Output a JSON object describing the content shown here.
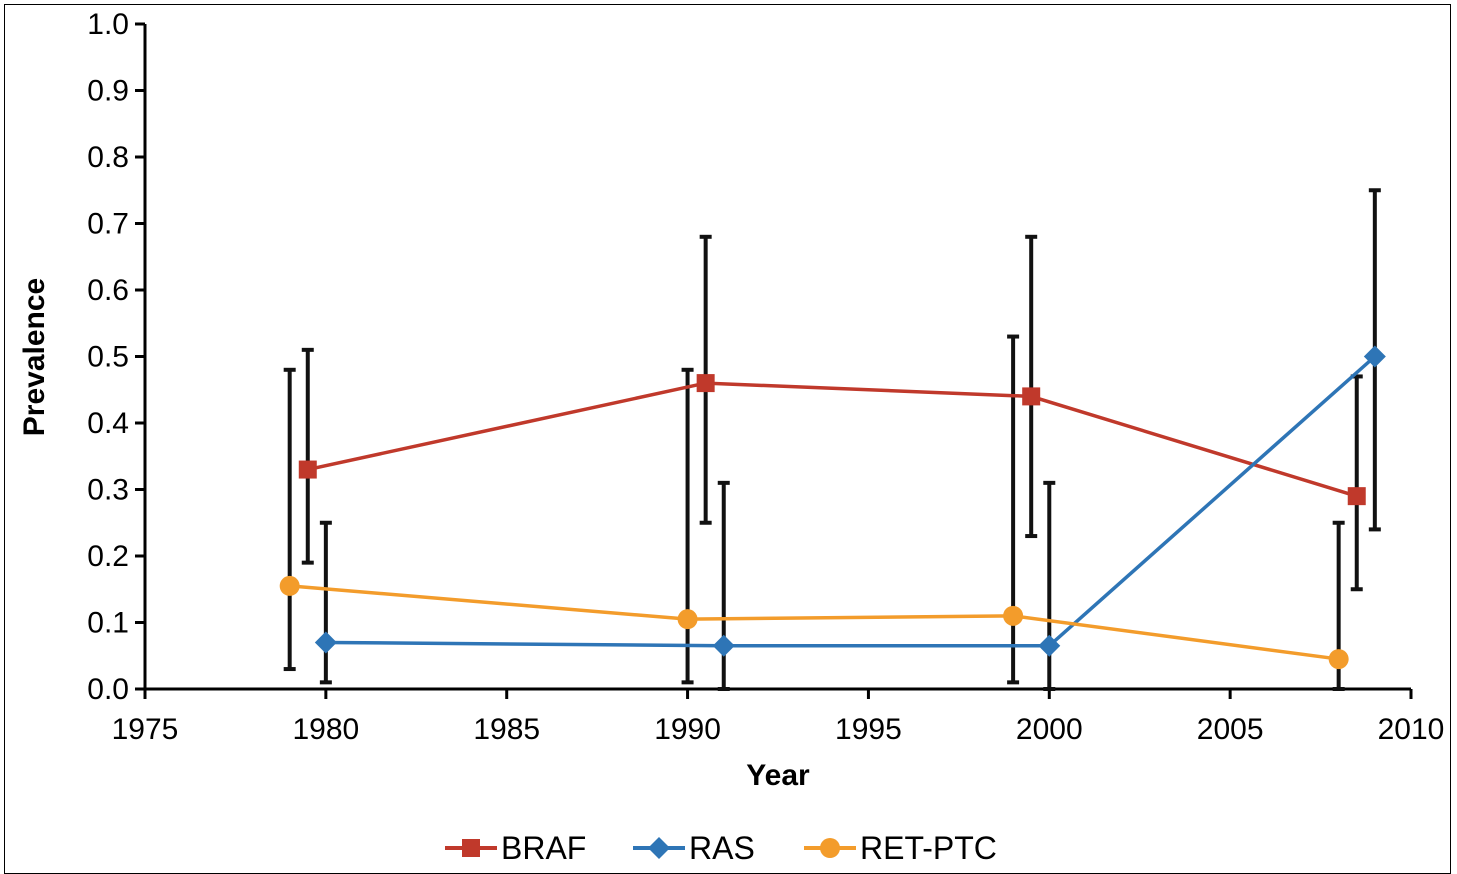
{
  "chart_data": {
    "type": "line",
    "title": "",
    "xlabel": "Year",
    "ylabel": "Prevalence",
    "xlim": [
      1975,
      2010
    ],
    "ylim": [
      0.0,
      1.0
    ],
    "xticks": [
      "1975",
      "1980",
      "1985",
      "1990",
      "1995",
      "2000",
      "2005",
      "2010"
    ],
    "yticks": [
      "0.0",
      "0.1",
      "0.2",
      "0.3",
      "0.4",
      "0.5",
      "0.6",
      "0.7",
      "0.8",
      "0.9",
      "1.0"
    ],
    "grid": false,
    "legend_position": "bottom",
    "series": [
      {
        "name": "BRAF",
        "color": "#c0392b",
        "marker": "square",
        "points": [
          {
            "x": 1979.5,
            "y": 0.33,
            "err_low": 0.19,
            "err_high": 0.51
          },
          {
            "x": 1990.5,
            "y": 0.46,
            "err_low": 0.25,
            "err_high": 0.68
          },
          {
            "x": 1999.5,
            "y": 0.44,
            "err_low": 0.23,
            "err_high": 0.68
          },
          {
            "x": 2008.5,
            "y": 0.29,
            "err_low": 0.15,
            "err_high": 0.47
          }
        ]
      },
      {
        "name": "RAS",
        "color": "#2e75b6",
        "marker": "diamond",
        "points": [
          {
            "x": 1980,
            "y": 0.07,
            "err_low": 0.01,
            "err_high": 0.25
          },
          {
            "x": 1991,
            "y": 0.065,
            "err_low": 0.0,
            "err_high": 0.31
          },
          {
            "x": 2000,
            "y": 0.065,
            "err_low": 0.0,
            "err_high": 0.31
          },
          {
            "x": 2009,
            "y": 0.5,
            "err_low": 0.24,
            "err_high": 0.75
          }
        ]
      },
      {
        "name": "RET-PTC",
        "color": "#f39c2b",
        "marker": "circle",
        "points": [
          {
            "x": 1979,
            "y": 0.155,
            "err_low": 0.03,
            "err_high": 0.48
          },
          {
            "x": 1990,
            "y": 0.105,
            "err_low": 0.01,
            "err_high": 0.48
          },
          {
            "x": 1999,
            "y": 0.11,
            "err_low": 0.01,
            "err_high": 0.53
          },
          {
            "x": 2008,
            "y": 0.045,
            "err_low": 0.0,
            "err_high": 0.25
          }
        ]
      }
    ]
  }
}
